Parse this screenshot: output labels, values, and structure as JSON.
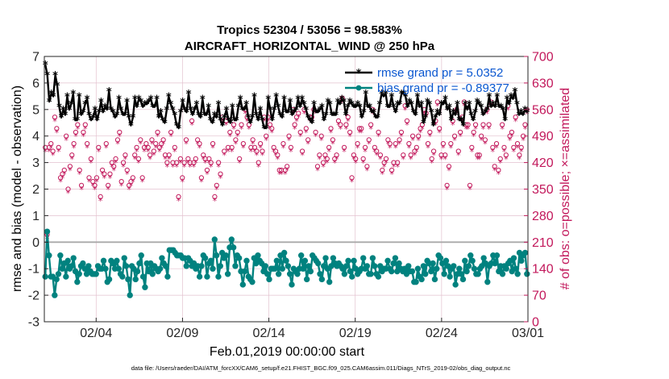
{
  "chart_data": {
    "type": "line",
    "title_line1": "Tropics 52304 / 53056 = 98.583%",
    "title_line2": "AIRCRAFT_HORIZONTAL_WIND @ 250 hPa",
    "ylabel_left": "rmse and bias (model - observation)",
    "ylabel_right": "# of obs: o=possible; ×=assimilated",
    "xlabel": "Feb.01,2019 00:00:00 start",
    "footer": "data file: /Users/raeder/DAI/ATM_forcXX/CAM6_setup/f.e21.FHIST_BGC.f09_025.CAM6assim.011/Diags_NTrS_2019-02/obs_diag_output.nc",
    "ylim_left": [
      -3,
      7
    ],
    "ylim_right": [
      0,
      700
    ],
    "xlim": [
      1,
      29
    ],
    "yticks_left": [
      "-3",
      "-2",
      "-1",
      "0",
      "1",
      "2",
      "3",
      "4",
      "5",
      "6",
      "7"
    ],
    "yticks_right": [
      "0",
      "70",
      "140",
      "210",
      "280",
      "350",
      "420",
      "490",
      "560",
      "630",
      "700"
    ],
    "xticks": [
      {
        "label": "02/04",
        "day": 4
      },
      {
        "label": "02/09",
        "day": 9
      },
      {
        "label": "02/14",
        "day": 14
      },
      {
        "label": "02/19",
        "day": 19
      },
      {
        "label": "02/24",
        "day": 24
      },
      {
        "label": "03/01",
        "day": 29
      }
    ],
    "legend": [
      {
        "label": "rmse grand pr = 5.0352",
        "color": "#000000"
      },
      {
        "label": "bias grand pr = -0.89377",
        "color": "#00827f"
      }
    ],
    "rmse": [
      6.7,
      6.3,
      5.3,
      5.6,
      5.5,
      6.3,
      5.9,
      5.1,
      4.7,
      5.0,
      4.8,
      5.5,
      5.0,
      5.2,
      5.6,
      4.6,
      4.6,
      5.5,
      4.8,
      4.9,
      5.2,
      5.4,
      4.8,
      4.6,
      4.7,
      5.0,
      4.6,
      4.9,
      5.3,
      4.9,
      5.1,
      5.0,
      5.7,
      5.0,
      4.9,
      4.7,
      4.8,
      5.4,
      5.0,
      4.8,
      4.8,
      5.3,
      4.7,
      4.4,
      4.7,
      5.4,
      5.1,
      5.4,
      5.3,
      5.1,
      5.2,
      5.2,
      5.3,
      5.4,
      5.1,
      5.1,
      5.4,
      4.7,
      4.9,
      4.6,
      4.5,
      5.0,
      5.5,
      5.2,
      5.0,
      4.8,
      4.4,
      4.3,
      4.9,
      5.3,
      5.0,
      4.9,
      5.6,
      5.0,
      4.8,
      5.0,
      5.2,
      4.8,
      4.7,
      5.4,
      4.8,
      4.8,
      5.1,
      4.6,
      4.5,
      4.8,
      4.7,
      5.2,
      4.6,
      4.4,
      4.7,
      5.0,
      4.6,
      4.5,
      5.1,
      4.6,
      4.6,
      5.1,
      5.4,
      5.0,
      5.0,
      5.2,
      4.7,
      4.5,
      4.7,
      5.5,
      4.8,
      4.6,
      5.0,
      4.6,
      4.3,
      4.3,
      5.4,
      5.0,
      4.6,
      5.0,
      5.5,
      5.1,
      4.8,
      4.7,
      5.4,
      4.9,
      4.9,
      5.3,
      4.8,
      4.9,
      5.0,
      5.4,
      5.1,
      5.4,
      5.2,
      5.0,
      4.7,
      4.6,
      4.5,
      5.2,
      4.9,
      4.9,
      5.0,
      5.1,
      4.6,
      4.8,
      5.3,
      5.2,
      4.8,
      4.8,
      4.8,
      5.3,
      5.2,
      5.4,
      5.3,
      4.8,
      5.1,
      5.3,
      5.2,
      5.1,
      5.1,
      5.2,
      5.1,
      4.7,
      4.9,
      5.6,
      5.1,
      5.1,
      4.9,
      4.9,
      4.7,
      4.7,
      5.2,
      5.6,
      5.5,
      5.6,
      5.1,
      5.1,
      5.5,
      5.1,
      4.9,
      5.2,
      5.2,
      5.6,
      5.6,
      5.5,
      5.1,
      5.3,
      5.2,
      4.9,
      4.8,
      5.5,
      5.1,
      5.2,
      4.5,
      4.7,
      5.3,
      5.2,
      4.9,
      4.4,
      4.7,
      4.9,
      4.8,
      5.2,
      5.2,
      5.4,
      5.0,
      5.1,
      4.6,
      4.9,
      4.8,
      5.2,
      4.6,
      4.6,
      4.4,
      5.2,
      5.0,
      5.2,
      4.8,
      4.6,
      4.9,
      5.3,
      5.2,
      5.1,
      4.8,
      4.9,
      5.0,
      5.5,
      5.1,
      5.2,
      5.1,
      5.5,
      5.1,
      5.1,
      5.0,
      4.6,
      5.4,
      5.2,
      5.5,
      5.4,
      5.7,
      5.2,
      4.8,
      4.9,
      4.8,
      5.0,
      4.9
    ],
    "bias": [
      -1.3,
      0.4,
      -0.5,
      -1.3,
      -1.3,
      -2.0,
      -1.4,
      -1.2,
      -0.5,
      -1.0,
      -0.8,
      -1.3,
      -0.7,
      -1.0,
      -0.9,
      -0.6,
      -1.1,
      -1.5,
      -1.2,
      -0.9,
      -0.8,
      -1.0,
      -1.2,
      -0.9,
      -1.1,
      -1.2,
      -1.2,
      -1.2,
      -0.9,
      -1.0,
      -1.0,
      -0.7,
      -1.0,
      -1.5,
      -1.4,
      -0.7,
      -0.8,
      -1.0,
      -0.7,
      -1.0,
      -1.2,
      -1.3,
      -0.6,
      -0.9,
      -1.4,
      -2.0,
      -0.9,
      -1.0,
      -1.4,
      -1.1,
      -0.8,
      -0.5,
      -1.3,
      -1.7,
      -0.8,
      -1.1,
      -0.8,
      -1.2,
      -0.9,
      -1.0,
      -1.1,
      -1.0,
      -0.6,
      -0.8,
      -0.9,
      -1.3,
      -0.3,
      -0.3,
      -0.3,
      -0.4,
      -0.5,
      -0.5,
      -0.5,
      -0.6,
      -0.6,
      -0.9,
      -0.6,
      -0.7,
      -0.9,
      -0.8,
      -1.0,
      -0.9,
      -1.3,
      -0.9,
      -0.5,
      -0.6,
      -1.3,
      -0.8,
      -0.7,
      -1.0,
      0.1,
      -0.5,
      -1.3,
      -0.9,
      -0.4,
      -0.6,
      -0.5,
      -1.2,
      -0.2,
      0.1,
      -0.2,
      -0.9,
      -0.5,
      -0.6,
      -1.1,
      -1.6,
      -1.1,
      -0.7,
      -1.3,
      -1.4,
      -1.5,
      -0.6,
      -0.8,
      -0.5,
      -0.7,
      -0.8,
      -1.1,
      -0.9,
      -1.2,
      -1.4,
      -1.0,
      -1.0,
      -1.0,
      -0.7,
      -1.2,
      -0.5,
      -1.0,
      -0.4,
      -0.7,
      -0.9,
      -1.2,
      -1.6,
      -1.0,
      -1.1,
      -1.2,
      -1.0,
      -0.5,
      -1.0,
      -0.7,
      -1.4,
      -0.9,
      -1.1,
      -0.5,
      -0.6,
      -0.7,
      -0.8,
      -1.2,
      -1.4,
      -0.9,
      -0.6,
      -1.0,
      -1.5,
      -0.9,
      -0.6,
      -0.8,
      -0.9,
      -0.8,
      -0.9,
      -1.0,
      -1.2,
      -0.9,
      -0.7,
      -1.1,
      -1.3,
      -0.7,
      -1.0,
      -1.2,
      -1.1,
      -1.0,
      -0.6,
      -1.0,
      -0.9,
      -1.2,
      -1.2,
      -0.6,
      -0.9,
      -1.2,
      -1.3,
      -0.9,
      -1.1,
      -1.0,
      -1.0,
      -0.7,
      -1.0,
      -1.1,
      -0.8,
      -0.6,
      -1.1,
      -0.8,
      -1.0,
      -1.1,
      -1.0,
      -1.2,
      -0.9,
      -1.1,
      -1.1,
      -1.5,
      -1.5,
      -1.0,
      -1.3,
      -1.4,
      -0.9,
      -1.2,
      -0.7,
      -0.8,
      -1.1,
      -0.8,
      -1.4,
      -1.0,
      -0.5,
      -0.6,
      -0.8,
      -1.2,
      -0.7,
      -0.9,
      -1.3,
      -1.0,
      -0.9,
      -1.6,
      -1.2,
      -1.0,
      -1.2,
      -1.4,
      -0.7,
      -1.1,
      -0.9,
      -0.5,
      -0.7,
      -1.0,
      -1.2,
      -1.2,
      -1.0,
      -0.9,
      -0.6,
      -0.8,
      -1.5,
      -0.9,
      -0.8,
      -0.5,
      -0.8,
      -0.5,
      -1.1,
      -0.9,
      -1.2,
      -0.9,
      -1.0,
      -0.8,
      -0.7,
      -1.1,
      -0.6,
      -1.0,
      -1.2,
      -0.4,
      -0.7,
      -0.5,
      -0.4,
      -1.2
    ],
    "obs_possible": [
      460,
      230,
      460,
      470,
      450,
      540,
      510,
      460,
      380,
      390,
      400,
      490,
      350,
      410,
      440,
      470,
      500,
      520,
      400,
      360,
      500,
      520,
      470,
      380,
      430,
      370,
      360,
      380,
      460,
      330,
      400,
      390,
      470,
      360,
      390,
      420,
      410,
      430,
      480,
      500,
      370,
      420,
      440,
      400,
      360,
      370,
      380,
      440,
      460,
      430,
      480,
      380,
      460,
      470,
      460,
      440,
      480,
      450,
      470,
      500,
      460,
      470,
      480,
      440,
      420,
      440,
      500,
      420,
      460,
      420,
      330,
      430,
      380,
      420,
      480,
      430,
      420,
      530,
      420,
      430,
      480,
      470,
      380,
      440,
      430,
      400,
      430,
      420,
      470,
      330,
      360,
      420,
      390,
      540,
      450,
      530,
      460,
      500,
      460,
      520,
      480,
      500,
      430,
      520,
      470,
      560,
      540,
      520,
      460,
      480,
      460,
      450,
      420,
      470,
      450,
      540,
      490,
      540,
      520,
      510,
      460,
      450,
      440,
      400,
      400,
      470,
      400,
      410,
      490,
      460,
      560,
      520,
      540,
      550,
      500,
      450,
      560,
      510,
      480,
      540,
      540,
      560,
      500,
      410,
      440,
      490,
      420,
      440,
      430,
      460,
      510,
      480,
      430,
      440,
      530,
      520,
      590,
      460,
      520,
      540,
      500,
      380,
      440,
      430,
      470,
      510,
      510,
      430,
      460,
      410,
      480,
      520,
      560,
      460,
      450,
      500,
      440,
      400,
      420,
      430,
      480,
      470,
      400,
      420,
      470,
      420,
      480,
      500,
      440,
      570,
      530,
      470,
      440,
      490,
      450,
      460,
      490,
      510,
      520,
      560,
      550,
      470,
      500,
      430,
      450,
      530,
      580,
      510,
      440,
      470,
      440,
      360,
      410,
      470,
      530,
      490,
      560,
      450,
      500,
      540,
      580,
      520,
      520,
      360,
      460,
      500,
      520,
      440,
      440,
      490,
      520,
      480,
      560,
      520,
      580,
      460,
      410,
      470,
      400,
      430,
      520,
      460,
      440,
      570,
      490,
      500,
      460,
      540,
      470,
      440,
      460,
      490,
      520,
      560
    ],
    "obs_assim": [
      450,
      220,
      450,
      460,
      440,
      530,
      500,
      450,
      370,
      380,
      390,
      480,
      340,
      400,
      430,
      460,
      490,
      510,
      390,
      350,
      490,
      510,
      460,
      370,
      420,
      360,
      350,
      370,
      450,
      320,
      390,
      380,
      460,
      350,
      380,
      410,
      400,
      420,
      470,
      490,
      360,
      410,
      430,
      390,
      350,
      360,
      370,
      430,
      450,
      420,
      470,
      370,
      450,
      460,
      450,
      430,
      470,
      440,
      460,
      490,
      450,
      460,
      470,
      430,
      410,
      430,
      490,
      410,
      450,
      410,
      320,
      420,
      370,
      410,
      470,
      420,
      410,
      520,
      410,
      420,
      470,
      460,
      370,
      430,
      420,
      390,
      420,
      410,
      460,
      320,
      350,
      410,
      380,
      530,
      440,
      520,
      450,
      490,
      450,
      510,
      470,
      490,
      420,
      510,
      460,
      550,
      530,
      510,
      450,
      470,
      450,
      440,
      410,
      460,
      440,
      530,
      480,
      530,
      510,
      500,
      450,
      440,
      430,
      390,
      390,
      460,
      390,
      400,
      480,
      450,
      550,
      510,
      530,
      540,
      490,
      440,
      550,
      500,
      470,
      530,
      530,
      550,
      490,
      400,
      430,
      480,
      410,
      430,
      420,
      450,
      500,
      470,
      420,
      430,
      520,
      510,
      580,
      450,
      510,
      530,
      490,
      370,
      430,
      420,
      460,
      500,
      500,
      420,
      450,
      400,
      470,
      510,
      550,
      450,
      440,
      490,
      430,
      390,
      410,
      420,
      470,
      460,
      390,
      410,
      460,
      410,
      470,
      490,
      430,
      560,
      520,
      460,
      430,
      480,
      440,
      450,
      480,
      500,
      510,
      550,
      540,
      460,
      490,
      420,
      440,
      520,
      570,
      500,
      430,
      460,
      430,
      350,
      400,
      460,
      520,
      480,
      550,
      440,
      490,
      530,
      570,
      510,
      510,
      350,
      450,
      490,
      510,
      430,
      430,
      480,
      510,
      470,
      550,
      510,
      570,
      450,
      400,
      460,
      390,
      420,
      510,
      450,
      430,
      560,
      480,
      490,
      450,
      530,
      460,
      430,
      450,
      480,
      510,
      550
    ]
  }
}
